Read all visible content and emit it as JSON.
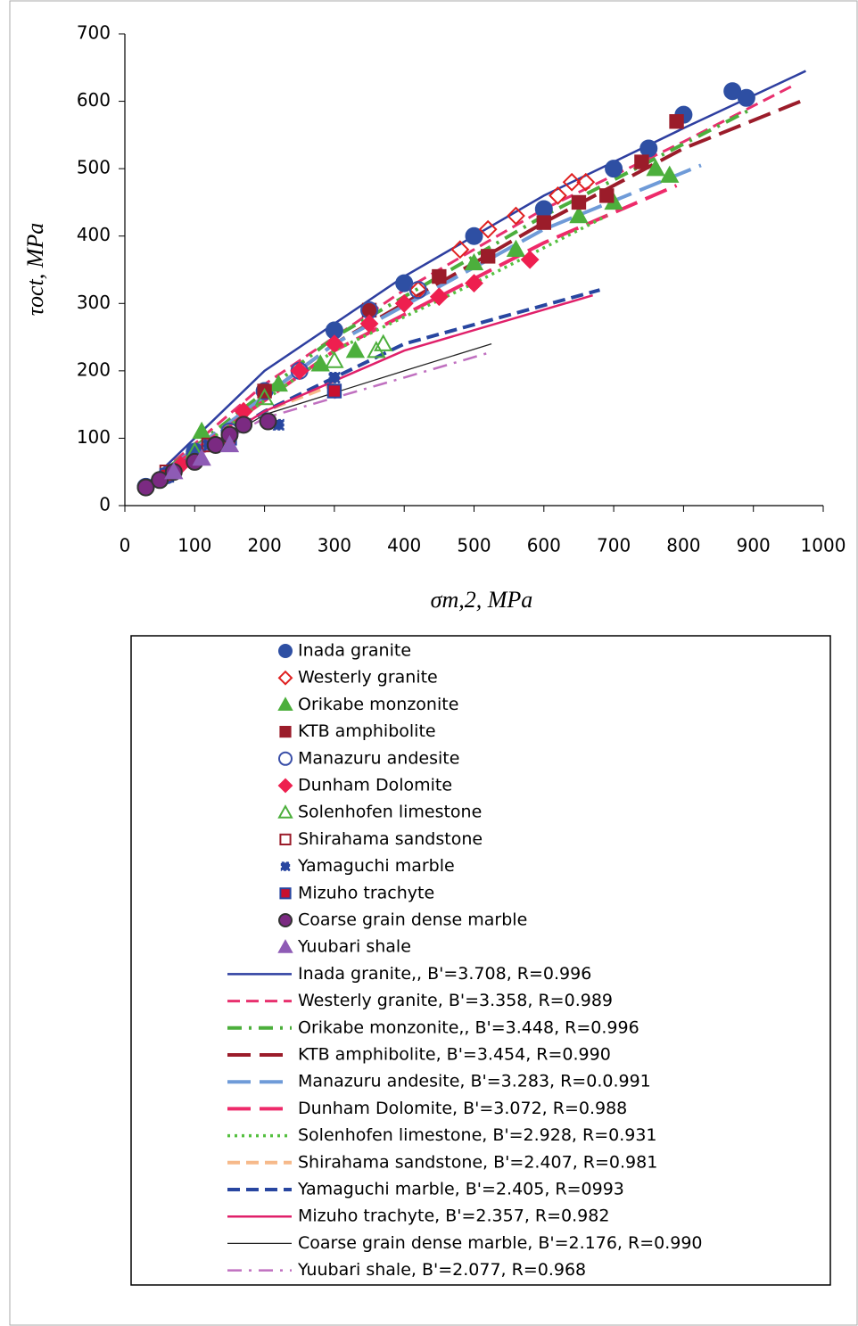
{
  "chart_data": {
    "type": "scatter",
    "x_label": "σm,2, MPa",
    "y_label": "τoct, MPa",
    "xlim": [
      0,
      1000
    ],
    "xticks": [
      0,
      100,
      200,
      300,
      400,
      500,
      600,
      700,
      800,
      900,
      1000
    ],
    "ylim": [
      0,
      700
    ],
    "yticks": [
      0,
      100,
      200,
      300,
      400,
      500,
      600,
      700
    ],
    "series": [
      {
        "name": "Inada granite",
        "color": "#2e4fa3",
        "marker": "circle",
        "filled": true,
        "x": [
          30,
          100,
          200,
          300,
          400,
          500,
          600,
          700,
          750,
          800,
          870,
          890
        ],
        "values": [
          28,
          80,
          170,
          260,
          330,
          400,
          440,
          500,
          530,
          580,
          615,
          605
        ]
      },
      {
        "name": "Westerly granite",
        "color": "#e02020",
        "marker": "diamond",
        "filled": false,
        "x": [
          420,
          480,
          520,
          560,
          620,
          640,
          660
        ],
        "values": [
          320,
          380,
          410,
          430,
          460,
          480,
          480
        ]
      },
      {
        "name": "Orikabe monzonite",
        "color": "#4caf3c",
        "marker": "triangle",
        "filled": true,
        "x": [
          110,
          220,
          280,
          330,
          500,
          560,
          650,
          700,
          760,
          780
        ],
        "values": [
          110,
          180,
          210,
          230,
          360,
          380,
          430,
          450,
          500,
          490
        ]
      },
      {
        "name": "KTB amphibolite",
        "color": "#9b1c2a",
        "marker": "square",
        "filled": true,
        "x": [
          200,
          350,
          450,
          520,
          600,
          650,
          690,
          740,
          790
        ],
        "values": [
          170,
          290,
          340,
          370,
          420,
          450,
          460,
          510,
          570
        ]
      },
      {
        "name": "Manazuru andesite",
        "color": "#3a4fa8",
        "marker": "circle",
        "filled": false,
        "x": [
          60,
          150,
          250,
          350,
          420
        ],
        "values": [
          45,
          110,
          200,
          290,
          320
        ]
      },
      {
        "name": "Dunham Dolomite",
        "color": "#ee1f4f",
        "marker": "diamond",
        "filled": true,
        "x": [
          80,
          170,
          250,
          300,
          350,
          400,
          450,
          500,
          580
        ],
        "values": [
          60,
          140,
          200,
          240,
          270,
          300,
          310,
          330,
          365
        ]
      },
      {
        "name": "Solenhofen limestone",
        "color": "#4caf3c",
        "marker": "triangle",
        "filled": false,
        "x": [
          100,
          200,
          300,
          360,
          370
        ],
        "values": [
          80,
          160,
          215,
          230,
          240
        ]
      },
      {
        "name": "Shirahama sandstone",
        "color": "#9b1c2a",
        "marker": "square",
        "filled": false,
        "x": [
          60,
          120
        ],
        "values": [
          50,
          90
        ]
      },
      {
        "name": "Yamaguchi marble",
        "color": "#2846a0",
        "marker": "dots",
        "filled": true,
        "x": [
          50,
          120,
          220,
          300
        ],
        "values": [
          40,
          90,
          120,
          190
        ]
      },
      {
        "name": "Mizuho trachyte",
        "color": "#c8102e",
        "marker": "xsquare",
        "filled": true,
        "x": [
          60,
          150,
          300
        ],
        "values": [
          45,
          100,
          170
        ]
      },
      {
        "name": "Coarse grain dense marble",
        "color": "#7b2a82",
        "marker": "circle",
        "filled": true,
        "x": [
          30,
          50,
          70,
          100,
          130,
          150,
          170,
          205
        ],
        "values": [
          27,
          38,
          50,
          65,
          90,
          105,
          120,
          125
        ]
      },
      {
        "name": "Yuubari shale",
        "color": "#8e5bb5",
        "marker": "triangle",
        "filled": true,
        "x": [
          70,
          110,
          150
        ],
        "values": [
          50,
          70,
          90
        ]
      }
    ],
    "fits": [
      {
        "name": "Inada granite,, B'=3.708, R=0.996",
        "color": "#2e3fa0",
        "dash": "solid",
        "width": 2.5,
        "x": [
          30,
          100,
          200,
          400,
          600,
          800,
          975
        ],
        "values": [
          30,
          100,
          200,
          340,
          460,
          560,
          645
        ]
      },
      {
        "name": "Westerly granite, B'=3.358, R=0.989",
        "color": "#e8306e",
        "dash": "dash",
        "width": 3,
        "x": [
          30,
          200,
          400,
          600,
          800,
          960
        ],
        "values": [
          30,
          180,
          320,
          440,
          540,
          625
        ]
      },
      {
        "name": "Orikabe monzonite,, B'=3.448, R=0.996",
        "color": "#4caf3c",
        "dash": "dashdot",
        "width": 4,
        "x": [
          30,
          300,
          600,
          900
        ],
        "values": [
          30,
          250,
          430,
          590
        ]
      },
      {
        "name": "KTB amphibolite, B'=3.454, R=0.990",
        "color": "#9b1c2a",
        "dash": "longdash",
        "width": 4,
        "x": [
          30,
          300,
          600,
          800,
          975
        ],
        "values": [
          30,
          240,
          420,
          530,
          603
        ]
      },
      {
        "name": "Manazuru andesite, B'=3.283, R=0.0.991",
        "color": "#6f9bd8",
        "dash": "longdash",
        "width": 4,
        "x": [
          30,
          300,
          600,
          825
        ],
        "values": [
          30,
          240,
          410,
          505
        ]
      },
      {
        "name": "Dunham Dolomite,  B'=3.072, R=0.988",
        "color": "#ee2a6a",
        "dash": "longdash",
        "width": 4,
        "x": [
          30,
          300,
          600,
          790
        ],
        "values": [
          30,
          230,
          390,
          475
        ]
      },
      {
        "name": "Solenhofen limestone, B'=2.928, R=0.931",
        "color": "#55c040",
        "dash": "dot",
        "width": 3.5,
        "x": [
          30,
          300,
          500,
          690
        ],
        "values": [
          30,
          230,
          330,
          430
        ]
      },
      {
        "name": "Shirahama sandstone, B'=2.407, R=0.981",
        "color": "#f6b98a",
        "dash": "dash",
        "width": 4,
        "x": [
          30,
          200,
          300
        ],
        "values": [
          30,
          140,
          180
        ]
      },
      {
        "name": "Yamaguchi marble, B'=2.405, R=0993",
        "color": "#2846a0",
        "dash": "dash",
        "width": 4,
        "x": [
          30,
          200,
          400,
          680
        ],
        "values": [
          30,
          140,
          240,
          320
        ]
      },
      {
        "name": "Mizuho trachyte, B'=2.357, R=0.982",
        "color": "#e0206a",
        "dash": "solid",
        "width": 2.5,
        "x": [
          30,
          200,
          400,
          670
        ],
        "values": [
          30,
          140,
          230,
          312
        ]
      },
      {
        "name": "Coarse grain dense marble, B'=2.176, R=0.990",
        "color": "#222222",
        "dash": "solid",
        "width": 1.3,
        "x": [
          30,
          200,
          400,
          525
        ],
        "values": [
          30,
          135,
          200,
          240
        ]
      },
      {
        "name": "Yuubari shale, B'=2.077, R=0.968",
        "color": "#c070c0",
        "dash": "dashdot",
        "width": 2.5,
        "x": [
          30,
          200,
          400,
          525
        ],
        "values": [
          30,
          130,
          190,
          228
        ]
      }
    ]
  }
}
